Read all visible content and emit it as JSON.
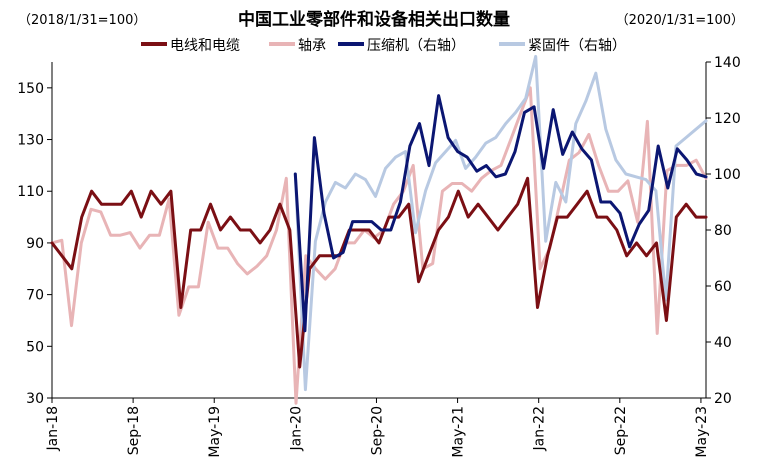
{
  "chart_data": {
    "type": "line",
    "title": "中国工业零部件和设备相关出口数量",
    "left_note": "（2018/1/31=100）",
    "right_note": "（2020/1/31=100）",
    "x_tick_labels": [
      "Jan-18",
      "Sep-18",
      "May-19",
      "Jan-20",
      "Sep-20",
      "May-21",
      "Jan-22",
      "Sep-22",
      "May-23"
    ],
    "x_tick_months": [
      0,
      8,
      16,
      24,
      32,
      40,
      48,
      56,
      64
    ],
    "x_range_months": [
      0,
      64.5
    ],
    "ylim_left": [
      30,
      160
    ],
    "yticks_left": [
      30,
      50,
      70,
      90,
      110,
      130,
      150
    ],
    "ylim_right": [
      20,
      140
    ],
    "yticks_right": [
      20,
      40,
      60,
      80,
      100,
      120,
      140
    ],
    "grid": false,
    "legend_position": "top",
    "series": [
      {
        "name": "电线和电缆",
        "axis": "left",
        "color": "#7B0F14",
        "values": [
          90,
          85,
          80,
          100,
          110,
          105,
          105,
          105,
          110,
          100,
          110,
          105,
          110,
          65,
          95,
          95,
          105,
          95,
          100,
          95,
          95,
          90,
          95,
          105,
          95,
          42,
          80,
          85,
          85,
          85,
          95,
          95,
          95,
          90,
          100,
          100,
          105,
          75,
          85,
          95,
          100,
          110,
          100,
          105,
          100,
          95,
          100,
          105,
          115,
          65,
          85,
          100,
          100,
          105,
          110,
          100,
          100,
          95,
          85,
          90,
          85,
          90,
          60,
          100,
          105,
          100,
          100
        ]
      },
      {
        "name": "轴承",
        "axis": "left",
        "color": "#E8B4B6",
        "values": [
          90,
          91,
          58,
          90,
          103,
          102,
          93,
          93,
          94,
          88,
          93,
          93,
          107,
          62,
          73,
          73,
          98,
          88,
          88,
          82,
          78,
          81,
          85,
          95,
          115,
          28,
          85,
          80,
          76,
          80,
          90,
          90,
          95,
          92,
          95,
          105,
          110,
          120,
          80,
          82,
          110,
          113,
          113,
          110,
          115,
          118,
          120,
          130,
          140,
          150,
          80,
          88,
          105,
          122,
          125,
          132,
          120,
          110,
          110,
          114,
          98,
          137,
          55,
          118,
          120,
          120,
          122,
          115
        ]
      },
      {
        "name": "压缩机（右轴）",
        "axis": "right",
        "color": "#0B1672",
        "values": [
          100,
          44,
          113,
          86,
          70,
          72,
          83,
          83,
          83,
          80,
          80,
          90,
          110,
          118,
          103,
          128,
          113,
          108,
          106,
          101,
          103,
          99,
          100,
          108,
          122,
          124,
          102,
          123,
          107,
          115,
          109,
          105,
          90,
          90,
          86,
          74,
          82,
          87,
          110,
          95,
          109,
          105,
          100,
          99
        ]
      },
      {
        "name": "紧固件（右轴）",
        "axis": "right",
        "color": "#B8C9E2",
        "values": [
          100,
          23,
          76,
          90,
          97,
          95,
          100,
          98,
          92,
          102,
          106,
          108,
          79,
          94,
          104,
          108,
          112,
          102,
          106,
          111,
          113,
          118,
          122,
          127,
          142,
          76,
          97,
          90,
          118,
          126,
          136,
          116,
          105,
          100,
          99,
          98,
          94,
          55,
          110,
          113,
          116,
          119
        ]
      }
    ],
    "series_start_months": [
      0,
      0,
      24,
      24
    ]
  }
}
